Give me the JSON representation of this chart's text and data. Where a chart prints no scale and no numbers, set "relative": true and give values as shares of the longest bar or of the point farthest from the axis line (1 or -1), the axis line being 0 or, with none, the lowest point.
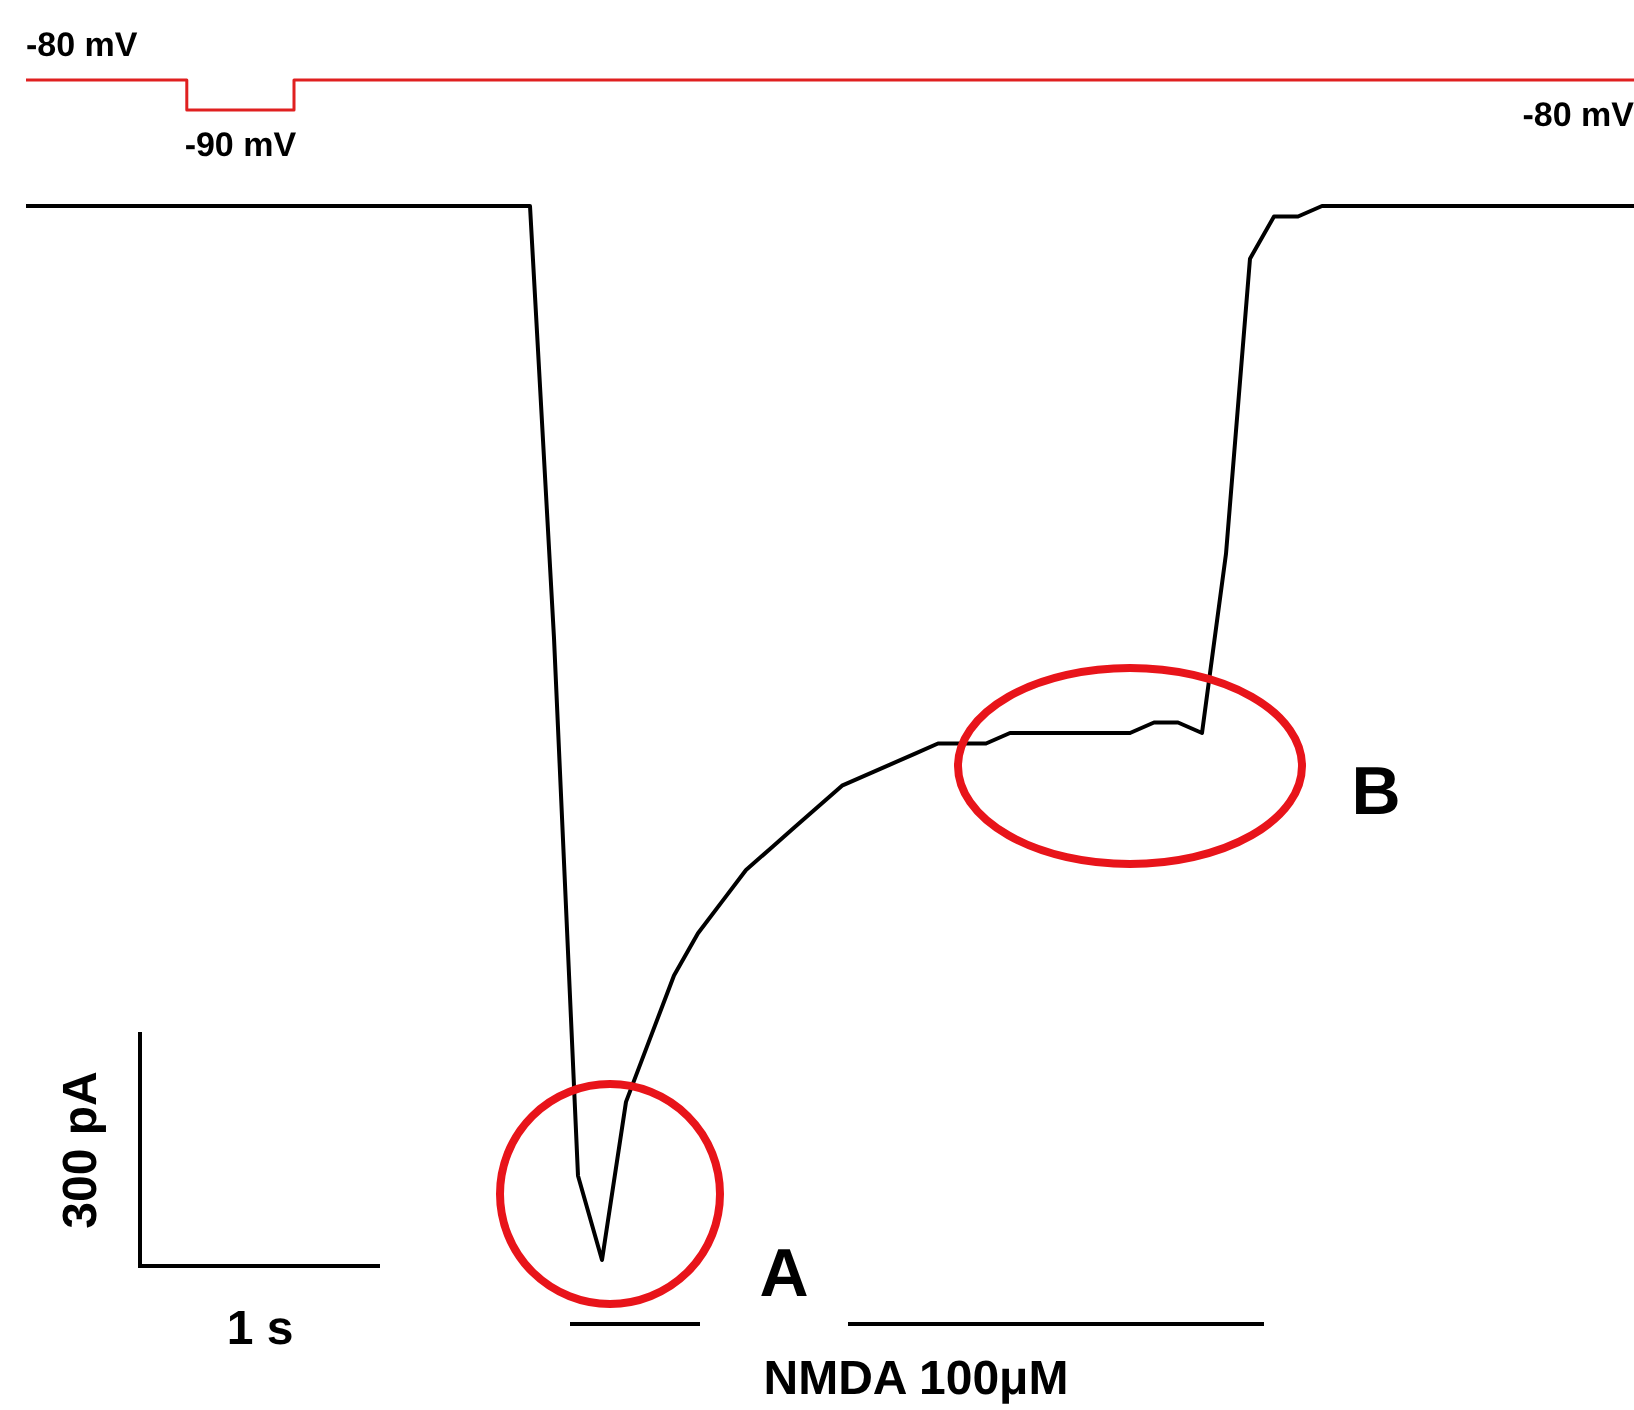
{
  "chart_data": [
    {
      "type": "step",
      "categories": [
        null,
        null,
        null,
        null,
        null,
        null,
        null,
        null,
        null,
        null,
        null,
        null,
        null,
        null,
        null,
        null,
        null,
        null,
        null,
        null,
        null,
        null,
        null,
        null,
        null,
        null,
        null,
        null,
        null,
        null,
        null
      ],
      "tick_labels": false,
      "series": [
        {
          "color": "#e02020",
          "values": [
            -80,
            -80,
            -80,
            -90,
            -90,
            -80,
            -80,
            -80,
            -80,
            -80,
            -80,
            -80,
            -80,
            -80,
            -80,
            -80,
            -80,
            -80,
            -80,
            -80,
            -80,
            -80,
            -80,
            -80,
            -80,
            -80,
            -80,
            -80,
            -80,
            -80,
            -80
          ],
          "value_labels": [
            "-80 mV",
            null,
            null,
            null,
            "-90 mV",
            null,
            null,
            null,
            null,
            null,
            null,
            null,
            null,
            null,
            null,
            null,
            null,
            null,
            null,
            null,
            null,
            null,
            null,
            null,
            null,
            null,
            null,
            null,
            null,
            null,
            "-80 mV"
          ]
        }
      ]
    },
    {
      "type": "line",
      "relative": true,
      "tick_labels": false,
      "categories": [
        null,
        null,
        null,
        null,
        null,
        null,
        null,
        null,
        null,
        null,
        null,
        null,
        null,
        null,
        null,
        null,
        null,
        null,
        null,
        null,
        null,
        null,
        null,
        null,
        null,
        null,
        null,
        null,
        null,
        null,
        null,
        null,
        null,
        null,
        null,
        null,
        null,
        null,
        null,
        null,
        null,
        null,
        null,
        null,
        null,
        null,
        null,
        null,
        null,
        null,
        null,
        null,
        null,
        null,
        null,
        null,
        null,
        null,
        null,
        null,
        null,
        null,
        null,
        null,
        null,
        null,
        null,
        null
      ],
      "series": [
        {
          "color": "#000000",
          "values": [
            1,
            1,
            1,
            1,
            1,
            1,
            1,
            1,
            1,
            1,
            1,
            1,
            1,
            1,
            1,
            1,
            1,
            1,
            1,
            1,
            1,
            1,
            0.59,
            0.08,
            0,
            0.15,
            0.21,
            0.27,
            0.31,
            0.34,
            0.37,
            0.39,
            0.41,
            0.43,
            0.45,
            0.46,
            0.47,
            0.48,
            0.49,
            0.49,
            0.49,
            0.5,
            0.5,
            0.5,
            0.5,
            0.5,
            0.5,
            0.51,
            0.51,
            0.5,
            0.67,
            0.95,
            0.99,
            0.99,
            1,
            1,
            1,
            1,
            1,
            1,
            1,
            1,
            1,
            1,
            1,
            1,
            1,
            1
          ]
        }
      ],
      "annotations": [
        "A",
        "B",
        "NMDA 100μM",
        "300 pA",
        "1 s"
      ]
    }
  ]
}
